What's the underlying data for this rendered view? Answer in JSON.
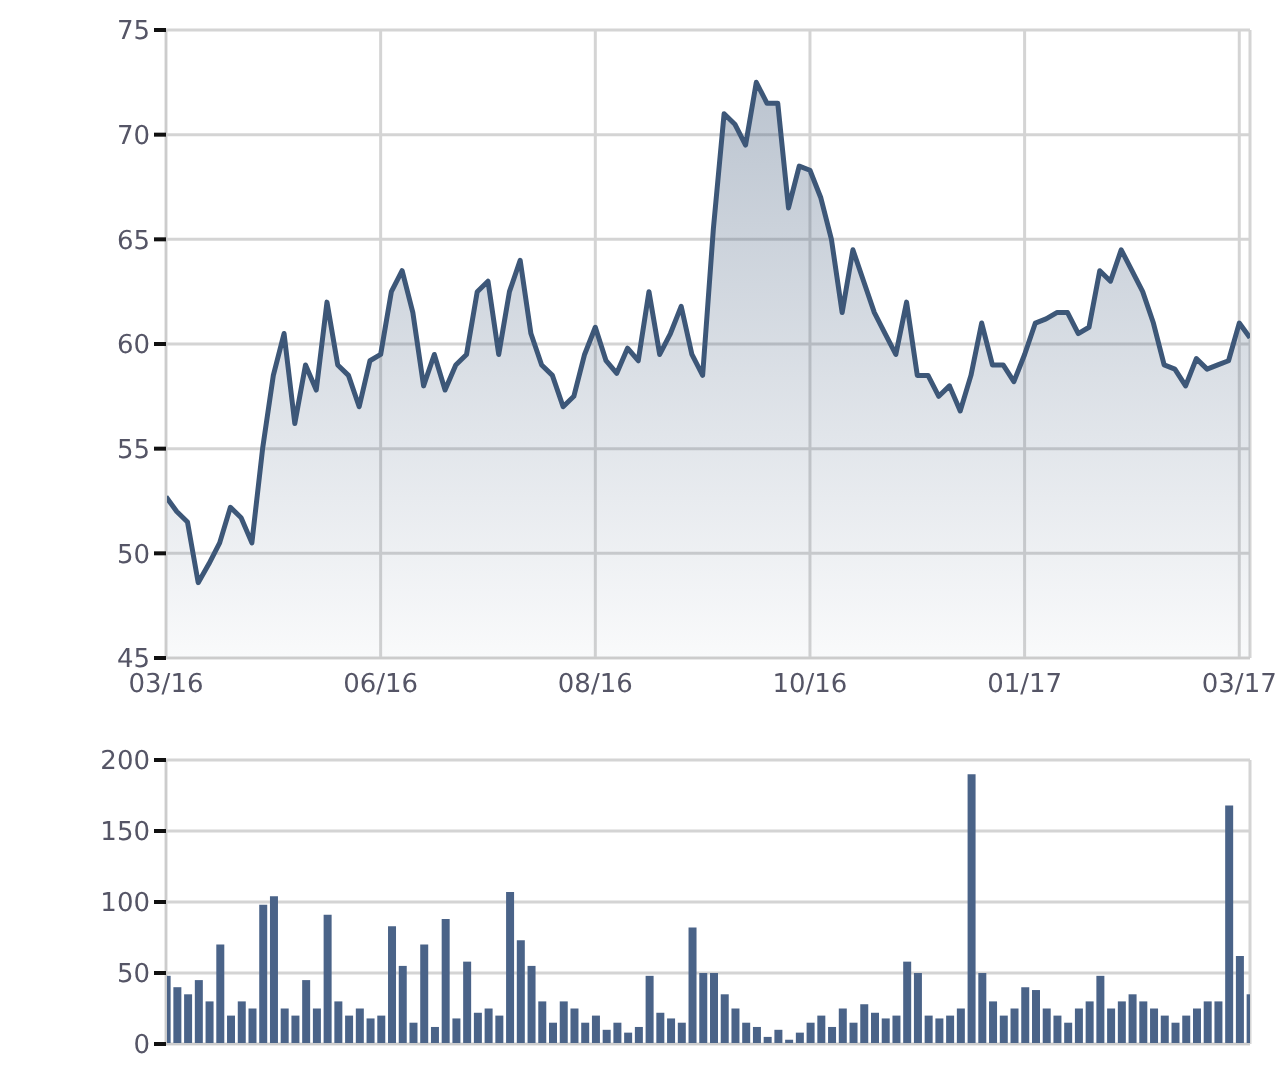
{
  "chart_data": [
    {
      "type": "area",
      "categories": [
        "03/16",
        null,
        null,
        null,
        null,
        null,
        null,
        null,
        null,
        null,
        null,
        null,
        null,
        null,
        null,
        null,
        null,
        null,
        null,
        null,
        "06/16",
        null,
        null,
        null,
        null,
        null,
        null,
        null,
        null,
        null,
        null,
        null,
        null,
        null,
        null,
        null,
        null,
        null,
        null,
        null,
        "08/16",
        null,
        null,
        null,
        null,
        null,
        null,
        null,
        null,
        null,
        null,
        null,
        null,
        null,
        null,
        null,
        null,
        null,
        null,
        null,
        "10/16",
        null,
        null,
        null,
        null,
        null,
        null,
        null,
        null,
        null,
        null,
        null,
        null,
        null,
        null,
        null,
        null,
        null,
        null,
        null,
        "01/17",
        null,
        null,
        null,
        null,
        null,
        null,
        null,
        null,
        null,
        null,
        null,
        null,
        null,
        null,
        null,
        null,
        null,
        null,
        null,
        "03/17",
        null
      ],
      "series": [
        {
          "color": "#3d5778",
          "values": [
            52.7,
            52,
            51.5,
            48.6,
            49.5,
            50.5,
            52.2,
            51.7,
            50.5,
            55,
            58.5,
            60.5,
            56.2,
            59,
            57.8,
            62,
            59,
            58.5,
            57,
            59.2,
            59.5,
            62.5,
            63.5,
            61.5,
            58,
            59.5,
            57.8,
            59,
            59.5,
            62.5,
            63,
            59.5,
            62.5,
            64,
            60.5,
            59,
            58.5,
            57,
            57.5,
            59.5,
            60.8,
            59.2,
            58.6,
            59.8,
            59.2,
            62.5,
            59.5,
            60.5,
            61.8,
            59.5,
            58.5,
            65.5,
            71,
            70.5,
            69.5,
            72.5,
            71.5,
            71.5,
            66.5,
            68.5,
            68.3,
            67,
            65,
            61.5,
            64.5,
            63,
            61.5,
            60.5,
            59.5,
            62,
            58.5,
            58.5,
            57.5,
            58,
            56.8,
            58.5,
            61,
            59,
            59,
            58.2,
            59.5,
            61,
            61.2,
            61.5,
            61.5,
            60.5,
            60.8,
            63.5,
            63,
            64.5,
            63.5,
            62.5,
            61,
            59,
            58.8,
            58,
            59.3,
            58.8,
            59,
            59.2,
            61,
            60.3
          ]
        }
      ],
      "ylim": [
        45,
        75
      ],
      "yticks": [
        45,
        50,
        55,
        60,
        65,
        70,
        75
      ],
      "grid": true
    },
    {
      "type": "bar",
      "categories": [
        null,
        null,
        null,
        null,
        null,
        null,
        null,
        null,
        null,
        null,
        null,
        null,
        null,
        null,
        null,
        null,
        null,
        null,
        null,
        null,
        null,
        null,
        null,
        null,
        null,
        null,
        null,
        null,
        null,
        null,
        null,
        null,
        null,
        null,
        null,
        null,
        null,
        null,
        null,
        null,
        null,
        null,
        null,
        null,
        null,
        null,
        null,
        null,
        null,
        null,
        null,
        null,
        null,
        null,
        null,
        null,
        null,
        null,
        null,
        null,
        null,
        null,
        null,
        null,
        null,
        null,
        null,
        null,
        null,
        null,
        null,
        null,
        null,
        null,
        null,
        null,
        null,
        null,
        null,
        null,
        null,
        null,
        null,
        null,
        null,
        null,
        null,
        null,
        null,
        null,
        null,
        null,
        null,
        null,
        null,
        null,
        null,
        null,
        null,
        null,
        null,
        null
      ],
      "values": [
        48,
        40,
        35,
        45,
        30,
        70,
        20,
        30,
        25,
        98,
        104,
        25,
        20,
        45,
        25,
        91,
        30,
        20,
        25,
        18,
        20,
        83,
        55,
        15,
        70,
        12,
        88,
        18,
        58,
        22,
        25,
        20,
        107,
        73,
        55,
        30,
        15,
        30,
        25,
        15,
        20,
        10,
        15,
        8,
        12,
        48,
        22,
        18,
        15,
        82,
        50,
        50,
        35,
        25,
        15,
        12,
        5,
        10,
        3,
        8,
        15,
        20,
        12,
        25,
        15,
        28,
        22,
        18,
        20,
        58,
        50,
        20,
        18,
        20,
        25,
        190,
        50,
        30,
        20,
        25,
        40,
        38,
        25,
        20,
        15,
        25,
        30,
        48,
        25,
        30,
        35,
        30,
        25,
        20,
        15,
        20,
        25,
        30,
        30,
        168,
        62,
        35
      ],
      "color": "#4a6388",
      "ylim": [
        0,
        200
      ],
      "yticks": [
        0,
        50,
        100,
        150,
        200
      ],
      "grid": true,
      "tick_labels": "y"
    }
  ]
}
